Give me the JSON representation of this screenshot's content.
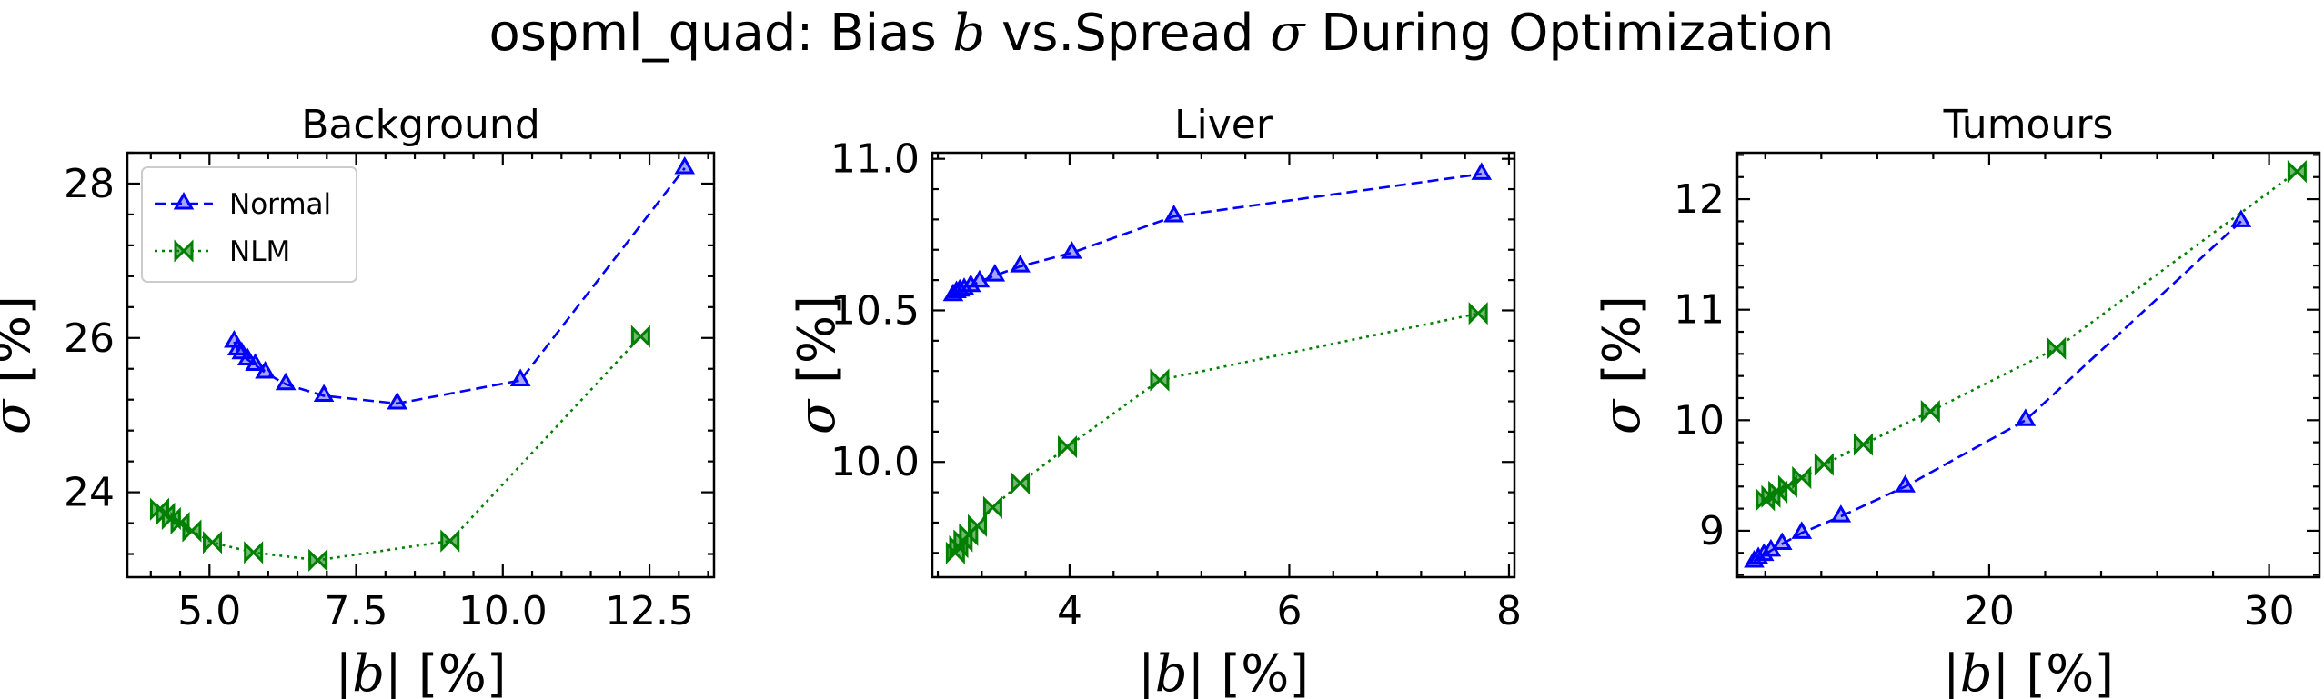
{
  "figure": {
    "title_prefix": "ospml_quad: Bias ",
    "title_bias_symbol": "b",
    "title_middle": " vs.Spread ",
    "title_spread_symbol": "σ",
    "title_suffix": " During Optimization"
  },
  "chart_data": [
    {
      "type": "line",
      "title": "Background",
      "xlabel": "|b| [%]",
      "ylabel": "σ [%]",
      "xlim": [
        3.6,
        13.6
      ],
      "ylim": [
        22.9,
        28.4
      ],
      "xticks": [
        5.0,
        7.5,
        10.0,
        12.5
      ],
      "xtick_labels": [
        "5.0",
        "7.5",
        "10.0",
        "12.5"
      ],
      "yticks": [
        24,
        26,
        28
      ],
      "ytick_labels": [
        "24",
        "26",
        "28"
      ],
      "grid": false,
      "legend_position": "upper-left",
      "series": [
        {
          "name": "Normal",
          "color": "#0000ff",
          "line_style": "dashed",
          "marker": "tri-up",
          "x": [
            5.42,
            5.48,
            5.55,
            5.65,
            5.78,
            5.95,
            6.3,
            6.95,
            8.2,
            10.3,
            13.1
          ],
          "y": [
            25.95,
            25.85,
            25.8,
            25.72,
            25.65,
            25.55,
            25.4,
            25.25,
            25.15,
            25.45,
            28.2
          ]
        },
        {
          "name": "NLM",
          "color": "#008000",
          "line_style": "dotted",
          "marker": "bowtie",
          "x": [
            4.15,
            4.25,
            4.35,
            4.5,
            4.7,
            5.05,
            5.75,
            6.85,
            9.1,
            12.35
          ],
          "y": [
            23.78,
            23.72,
            23.66,
            23.6,
            23.5,
            23.35,
            23.22,
            23.12,
            23.37,
            26.02
          ]
        }
      ]
    },
    {
      "type": "line",
      "title": "Liver",
      "xlabel": "|b| [%]",
      "ylabel": "σ [%]",
      "xlim": [
        2.75,
        8.05
      ],
      "ylim": [
        9.62,
        11.02
      ],
      "xticks": [
        4,
        6,
        8
      ],
      "xtick_labels": [
        "4",
        "6",
        "8"
      ],
      "yticks": [
        10.0,
        10.5,
        11.0
      ],
      "ytick_labels": [
        "10.0",
        "10.5",
        "11.0"
      ],
      "grid": false,
      "series": [
        {
          "name": "Normal",
          "color": "#0000ff",
          "line_style": "dashed",
          "marker": "tri-up",
          "x": [
            2.94,
            2.97,
            3.0,
            3.04,
            3.1,
            3.18,
            3.32,
            3.55,
            4.02,
            4.95,
            7.75
          ],
          "y": [
            10.55,
            10.56,
            10.565,
            10.57,
            10.58,
            10.595,
            10.615,
            10.645,
            10.69,
            10.81,
            10.95
          ]
        },
        {
          "name": "NLM",
          "color": "#008000",
          "line_style": "dotted",
          "marker": "bowtie",
          "x": [
            2.96,
            2.99,
            3.03,
            3.08,
            3.16,
            3.3,
            3.55,
            3.98,
            4.82,
            7.72
          ],
          "y": [
            9.7,
            9.72,
            9.74,
            9.76,
            9.79,
            9.85,
            9.93,
            10.05,
            10.27,
            10.49
          ]
        }
      ]
    },
    {
      "type": "line",
      "title": "Tumours",
      "xlabel": "|b| [%]",
      "ylabel": "σ [%]",
      "xlim": [
        11.0,
        31.8
      ],
      "ylim": [
        8.58,
        12.42
      ],
      "xticks": [
        20,
        30
      ],
      "xtick_labels": [
        "20",
        "30"
      ],
      "yticks": [
        9,
        10,
        11,
        12
      ],
      "ytick_labels": [
        "9",
        "10",
        "11",
        "12"
      ],
      "grid": false,
      "series": [
        {
          "name": "Normal",
          "color": "#0000ff",
          "line_style": "dashed",
          "marker": "tri-up",
          "x": [
            11.6,
            11.75,
            11.95,
            12.2,
            12.6,
            13.3,
            14.7,
            17.0,
            21.3,
            29.0
          ],
          "y": [
            8.72,
            8.75,
            8.78,
            8.82,
            8.88,
            8.98,
            9.13,
            9.4,
            10.0,
            11.8
          ]
        },
        {
          "name": "NLM",
          "color": "#008000",
          "line_style": "dotted",
          "marker": "bowtie",
          "x": [
            12.0,
            12.2,
            12.45,
            12.8,
            13.3,
            14.1,
            15.5,
            17.9,
            22.4,
            31.0
          ],
          "y": [
            9.28,
            9.31,
            9.35,
            9.4,
            9.48,
            9.6,
            9.78,
            10.08,
            10.65,
            12.25
          ]
        }
      ]
    }
  ]
}
